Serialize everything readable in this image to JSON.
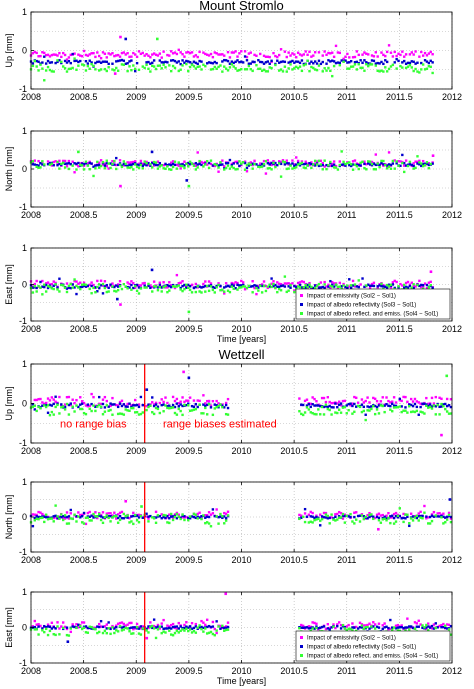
{
  "chart_data": [
    {
      "type": "scatter",
      "group_title": "Mount Stromlo",
      "ylabel": "Up [mm]",
      "xlabel": "",
      "xlim": [
        2008,
        2012
      ],
      "ylim": [
        -1,
        1
      ],
      "xticks": [
        "2008",
        "2008.5",
        "2009",
        "2009.5",
        "2010",
        "2010.5",
        "2011",
        "2011.5",
        "2012"
      ],
      "yticks": [
        "-1",
        "0",
        "1"
      ],
      "grid": true,
      "coverage": [
        [
          2008.0,
          2011.82
        ]
      ],
      "series": [
        {
          "color": "#ff00ff",
          "level": -0.1,
          "spread": 0.08
        },
        {
          "color": "#0000cc",
          "level": -0.3,
          "spread": 0.05
        },
        {
          "color": "#33ff33",
          "level": -0.45,
          "spread": 0.1
        }
      ],
      "outliers": [
        [
          2008.85,
          0.35
        ],
        [
          2008.9,
          0.3
        ],
        [
          2009.2,
          0.3
        ],
        [
          2008.8,
          -0.6
        ]
      ]
    },
    {
      "type": "scatter",
      "ylabel": "North [mm]",
      "xlabel": "",
      "xlim": [
        2008,
        2012
      ],
      "ylim": [
        -1,
        1
      ],
      "xticks": [
        "2008",
        "2008.5",
        "2009",
        "2009.5",
        "2010",
        "2010.5",
        "2011",
        "2011.5",
        "2012"
      ],
      "yticks": [
        "-1",
        "0",
        "1"
      ],
      "grid": true,
      "coverage": [
        [
          2008.0,
          2011.82
        ]
      ],
      "series": [
        {
          "color": "#ff00ff",
          "level": 0.15,
          "spread": 0.08
        },
        {
          "color": "#0000cc",
          "level": 0.12,
          "spread": 0.04
        },
        {
          "color": "#33ff33",
          "level": 0.1,
          "spread": 0.12
        }
      ],
      "outliers": [
        [
          2008.85,
          -0.45
        ],
        [
          2009.48,
          -0.3
        ],
        [
          2009.5,
          -0.45
        ],
        [
          2011.82,
          0.35
        ],
        [
          2009.15,
          0.45
        ],
        [
          2008.45,
          0.45
        ]
      ]
    },
    {
      "type": "scatter",
      "ylabel": "East [mm]",
      "xlabel": "Time [years]",
      "xlim": [
        2008,
        2012
      ],
      "ylim": [
        -1,
        1
      ],
      "xticks": [
        "2008",
        "2008.5",
        "2009",
        "2009.5",
        "2010",
        "2010.5",
        "2011",
        "2011.5",
        "2012"
      ],
      "yticks": [
        "-1",
        "0",
        "1"
      ],
      "grid": true,
      "coverage": [
        [
          2008.0,
          2011.82
        ]
      ],
      "series": [
        {
          "color": "#ff00ff",
          "level": 0.0,
          "spread": 0.1
        },
        {
          "color": "#0000cc",
          "level": -0.05,
          "spread": 0.05
        },
        {
          "color": "#33ff33",
          "level": -0.1,
          "spread": 0.12
        }
      ],
      "outliers": [
        [
          2008.85,
          -0.55
        ],
        [
          2008.82,
          -0.4
        ],
        [
          2009.5,
          -0.75
        ],
        [
          2011.8,
          0.35
        ],
        [
          2009.15,
          0.4
        ]
      ],
      "legend": {
        "placement": "bottom-right",
        "entries": [
          {
            "label": "Impact of emissivity (Sol2 − Sol1)",
            "color": "#ff00ff"
          },
          {
            "label": "Impact of albedo reflectivity (Sol3 − Sol1)",
            "color": "#0000cc"
          },
          {
            "label": "Impact of albedo reflect. and emiss. (Sol4 − Sol1)",
            "color": "#33ff33"
          }
        ]
      }
    },
    {
      "type": "scatter",
      "group_title": "Wettzell",
      "ylabel": "Up [mm]",
      "xlabel": "",
      "xlim": [
        2008,
        2012
      ],
      "ylim": [
        -1,
        1
      ],
      "xticks": [
        "2008",
        "2008.5",
        "2009",
        "2009.5",
        "2010",
        "2010.5",
        "2011",
        "2011.5",
        "2012"
      ],
      "yticks": [
        "-1",
        "0",
        "1"
      ],
      "grid": true,
      "coverage": [
        [
          2008.0,
          2009.88
        ],
        [
          2010.55,
          2012.0
        ]
      ],
      "vline": 2009.08,
      "annotations": [
        "no range bias",
        "range biases estimated"
      ],
      "series": [
        {
          "color": "#ff00ff",
          "level": 0.05,
          "spread": 0.12
        },
        {
          "color": "#0000cc",
          "level": -0.05,
          "spread": 0.05
        },
        {
          "color": "#33ff33",
          "level": -0.15,
          "spread": 0.14
        }
      ],
      "outliers": [
        [
          2009.45,
          0.8
        ],
        [
          2009.5,
          0.65
        ],
        [
          2011.95,
          0.7
        ],
        [
          2011.9,
          -0.8
        ],
        [
          2009.1,
          0.35
        ]
      ]
    },
    {
      "type": "scatter",
      "ylabel": "North [mm]",
      "xlabel": "",
      "xlim": [
        2008,
        2012
      ],
      "ylim": [
        -1,
        1
      ],
      "xticks": [
        "2008",
        "2008.5",
        "2009",
        "2009.5",
        "2010",
        "2010.5",
        "2011",
        "2011.5",
        "2012"
      ],
      "yticks": [
        "-1",
        "0",
        "1"
      ],
      "grid": true,
      "coverage": [
        [
          2008.0,
          2009.88
        ],
        [
          2010.55,
          2012.0
        ]
      ],
      "vline": 2009.08,
      "series": [
        {
          "color": "#ff00ff",
          "level": 0.05,
          "spread": 0.1
        },
        {
          "color": "#0000cc",
          "level": 0.0,
          "spread": 0.04
        },
        {
          "color": "#33ff33",
          "level": -0.05,
          "spread": 0.14
        }
      ],
      "outliers": [
        [
          2008.9,
          0.45
        ],
        [
          2011.98,
          0.5
        ],
        [
          2009.05,
          0.3
        ],
        [
          2011.3,
          -0.35
        ]
      ]
    },
    {
      "type": "scatter",
      "ylabel": "East [mm]",
      "xlabel": "Time [years]",
      "xlim": [
        2008,
        2012
      ],
      "ylim": [
        -1,
        1
      ],
      "xticks": [
        "2008",
        "2008.5",
        "2009",
        "2009.5",
        "2010",
        "2010.5",
        "2011",
        "2011.5",
        "2012"
      ],
      "yticks": [
        "-1",
        "0",
        "1"
      ],
      "grid": true,
      "coverage": [
        [
          2008.0,
          2009.88
        ],
        [
          2010.55,
          2012.0
        ]
      ],
      "vline": 2009.08,
      "series": [
        {
          "color": "#ff00ff",
          "level": 0.05,
          "spread": 0.1
        },
        {
          "color": "#0000cc",
          "level": 0.0,
          "spread": 0.04
        },
        {
          "color": "#33ff33",
          "level": -0.08,
          "spread": 0.14
        }
      ],
      "outliers": [
        [
          2009.85,
          0.95
        ],
        [
          2008.35,
          -0.4
        ],
        [
          2011.95,
          -0.4
        ],
        [
          2009.1,
          -0.3
        ]
      ],
      "legend": {
        "placement": "bottom-right",
        "entries": [
          {
            "label": "Impact of emissivity (Sol2 − Sol1)",
            "color": "#ff00ff"
          },
          {
            "label": "Impact of albedo reflectivity (Sol3 − Sol1)",
            "color": "#0000cc"
          },
          {
            "label": "Impact of albedo reflect. and emiss. (Sol4 − Sol1)",
            "color": "#33ff33"
          }
        ]
      }
    }
  ]
}
